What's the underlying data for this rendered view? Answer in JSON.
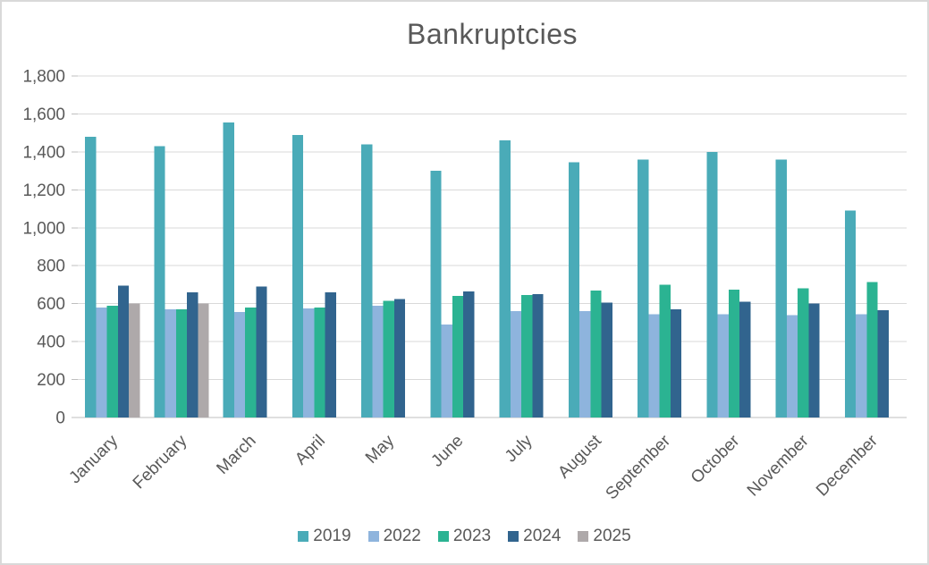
{
  "page": {
    "background": "#ffffff",
    "border_color": "#d9d9d9"
  },
  "chart_data": {
    "type": "bar",
    "title": "Bankruptcies",
    "categories": [
      "January",
      "February",
      "March",
      "April",
      "May",
      "June",
      "July",
      "August",
      "September",
      "October",
      "November",
      "December"
    ],
    "series": [
      {
        "name": "2019",
        "color": "#4aabb8",
        "values": [
          1480,
          1430,
          1555,
          1490,
          1440,
          1300,
          1460,
          1345,
          1360,
          1400,
          1360,
          1090
        ]
      },
      {
        "name": "2022",
        "color": "#8eb4dd",
        "values": [
          580,
          570,
          555,
          575,
          590,
          490,
          560,
          560,
          545,
          545,
          540,
          545
        ]
      },
      {
        "name": "2023",
        "color": "#2bb392",
        "values": [
          590,
          570,
          580,
          580,
          615,
          640,
          645,
          670,
          700,
          675,
          680,
          715
        ]
      },
      {
        "name": "2024",
        "color": "#31648e",
        "values": [
          695,
          660,
          690,
          660,
          625,
          665,
          650,
          605,
          570,
          610,
          600,
          565
        ]
      },
      {
        "name": "2025",
        "color": "#aea9aa",
        "values": [
          600,
          600,
          null,
          null,
          null,
          null,
          null,
          null,
          null,
          null,
          null,
          null
        ]
      }
    ],
    "ylim": [
      0,
      1800
    ],
    "ytick_step": 200,
    "ytick_labels": [
      "0",
      "200",
      "400",
      "600",
      "800",
      "1,000",
      "1,200",
      "1,400",
      "1,600",
      "1,800"
    ],
    "grid": true,
    "legend_position": "bottom",
    "xlabel": "",
    "ylabel": "",
    "text_color": "#595959",
    "grid_color": "#d9d9d9",
    "axis_color": "#bfbfbf"
  }
}
